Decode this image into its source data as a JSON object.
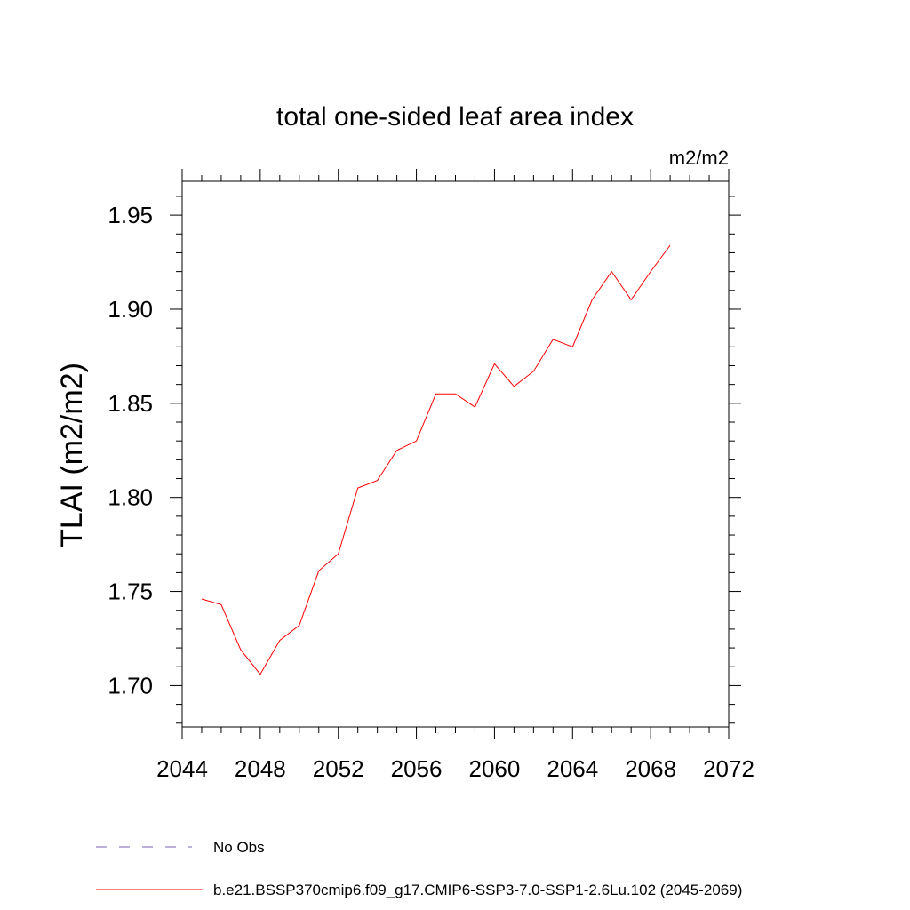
{
  "chart_data": {
    "type": "line",
    "title": "total one-sided leaf area index",
    "units": "m2/m2",
    "ylabel": "TLAI  (m2/m2)",
    "xlabel": "",
    "xlim": [
      2044,
      2072
    ],
    "ylim": [
      1.678,
      1.968
    ],
    "x_ticks": [
      "2044",
      "2048",
      "2052",
      "2056",
      "2060",
      "2064",
      "2068",
      "2072"
    ],
    "y_ticks": [
      "1.70",
      "1.75",
      "1.80",
      "1.85",
      "1.90",
      "1.95"
    ],
    "grid": false,
    "legend_position": "bottom",
    "series": [
      {
        "name": "b.e21.BSSP370cmip6.f09_g17.CMIP6-SSP3-7.0-SSP1-2.6Lu.102 (2045-2069)",
        "color": "#ff0000",
        "x": [
          2045,
          2046,
          2047,
          2048,
          2049,
          2050,
          2051,
          2052,
          2053,
          2054,
          2055,
          2056,
          2057,
          2058,
          2059,
          2060,
          2061,
          2062,
          2063,
          2064,
          2065,
          2066,
          2067,
          2068,
          2069
        ],
        "y": [
          1.746,
          1.743,
          1.719,
          1.706,
          1.724,
          1.732,
          1.761,
          1.77,
          1.805,
          1.809,
          1.825,
          1.83,
          1.855,
          1.855,
          1.848,
          1.871,
          1.859,
          1.867,
          1.884,
          1.88,
          1.905,
          1.92,
          1.905,
          1.92,
          1.934
        ]
      }
    ],
    "legend": [
      {
        "label": "No Obs",
        "color": "#7a62b0",
        "dash": true
      },
      {
        "label": "b.e21.BSSP370cmip6.f09_g17.CMIP6-SSP3-7.0-SSP1-2.6Lu.102 (2045-2069)",
        "color": "#ff0000",
        "dash": false
      }
    ]
  }
}
